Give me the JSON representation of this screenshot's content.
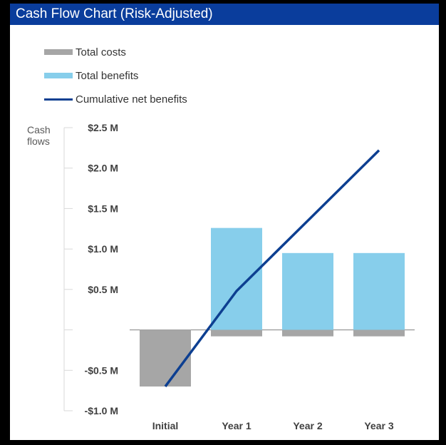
{
  "header": {
    "title": "Cash Flow Chart (Risk-Adjusted)"
  },
  "colors": {
    "title_bar": "#0a3d9c",
    "costs": "#a6a6a6",
    "benefits": "#87ceeb",
    "line": "#0d3f91"
  },
  "chart_data": {
    "type": "bar",
    "title": "Cash Flow Chart (Risk-Adjusted)",
    "ylabel": "Cash flows",
    "xlabel": "",
    "categories": [
      "Initial",
      "Year 1",
      "Year 2",
      "Year 3"
    ],
    "series": [
      {
        "name": "Total costs",
        "kind": "bar",
        "values": [
          -0.7,
          -0.08,
          -0.08,
          -0.08
        ]
      },
      {
        "name": "Total benefits",
        "kind": "bar",
        "values": [
          0,
          1.26,
          0.95,
          0.95
        ]
      },
      {
        "name": "Cumulative net benefits",
        "kind": "line",
        "values": [
          -0.7,
          0.48,
          1.35,
          2.22
        ]
      }
    ],
    "ylim": [
      -1.0,
      2.5
    ],
    "yticks": [
      "$2.5 M",
      "$2.0 M",
      "$1.5 M",
      "$1.0 M",
      "$0.5 M",
      "",
      "-$0.5 M",
      "-$1.0 M"
    ],
    "ytick_values": [
      2.5,
      2.0,
      1.5,
      1.0,
      0.5,
      0,
      -0.5,
      -1.0
    ],
    "legend_position": "top-left",
    "grid": false
  }
}
